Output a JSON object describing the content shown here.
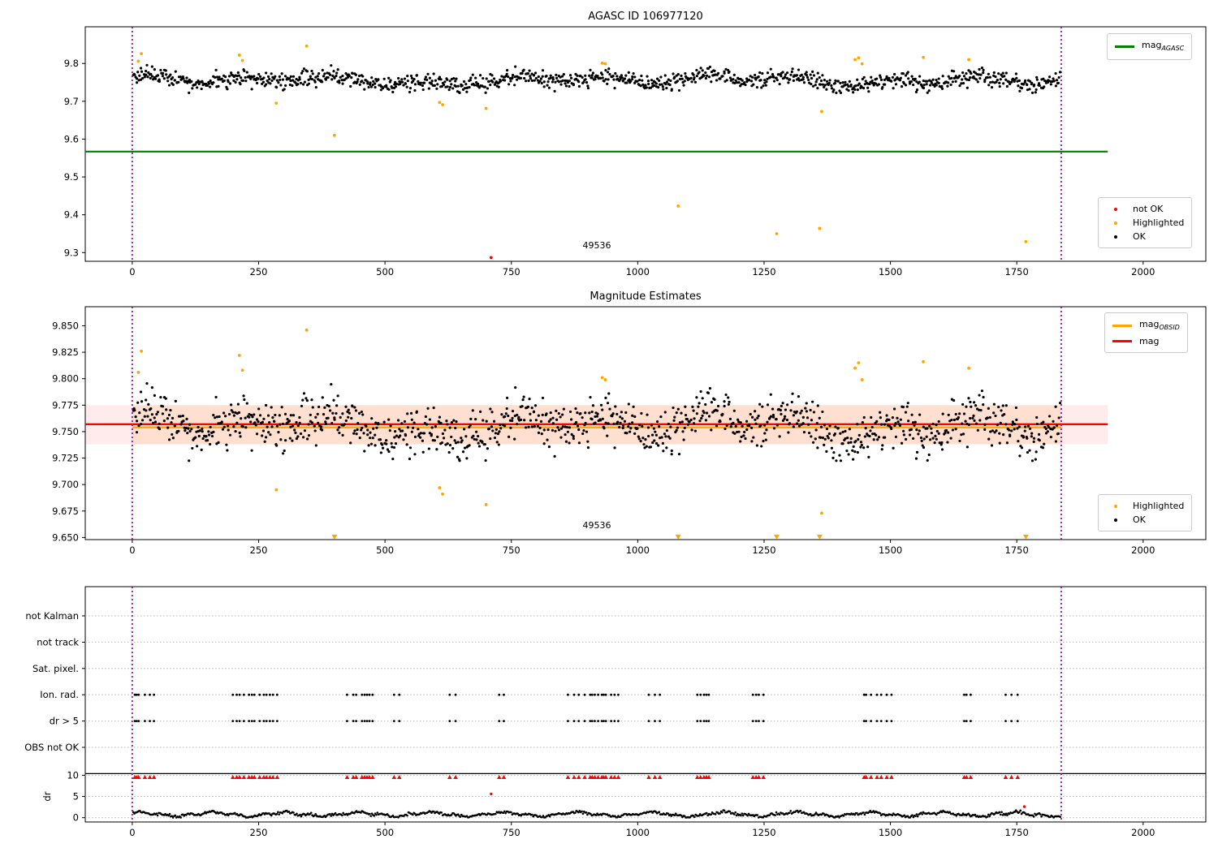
{
  "figure": {
    "bg": "#ffffff"
  },
  "colors": {
    "ok": "#000000",
    "highlighted": "#ffa500",
    "not_ok": "#ff0000",
    "mag_agasc_line": "#007f00",
    "mag_line": "#ff0000",
    "mag_obsid_line": "#ffa500",
    "obs_boundary": "#8b008b",
    "grid": "#b8b8b8",
    "spine": "#000000"
  },
  "chart_data": [
    {
      "id": "agasc-panel",
      "type": "scatter",
      "title": "AGASC ID 106977120",
      "xlim": [
        -93,
        2124
      ],
      "xticks": [
        0,
        250,
        500,
        750,
        1000,
        1250,
        1500,
        1750,
        2000
      ],
      "ylim": [
        9.277,
        9.897
      ],
      "yticks": [
        9.3,
        9.4,
        9.5,
        9.6,
        9.7,
        9.8
      ],
      "ytick_labels": [
        "9.3",
        "9.4",
        "9.5",
        "9.6",
        "9.7",
        "9.8"
      ],
      "obsid": {
        "id": "49536",
        "label_x": 919,
        "start": 0,
        "stop": 1838
      },
      "mag_agasc": 9.567,
      "hline_span": [
        -93,
        1930
      ],
      "scatter": {
        "n": 1150,
        "x_start": 2,
        "x_end": 1836,
        "mean": 9.7555,
        "noise": 0.0105
      },
      "highlighted": [
        [
          12,
          9.806
        ],
        [
          18,
          9.826
        ],
        [
          212,
          9.822
        ],
        [
          218,
          9.808
        ],
        [
          285,
          9.695
        ],
        [
          345,
          9.846
        ],
        [
          400,
          9.61
        ],
        [
          608,
          9.697
        ],
        [
          614,
          9.691
        ],
        [
          700,
          9.681
        ],
        [
          930,
          9.801
        ],
        [
          936,
          9.799
        ],
        [
          1080,
          9.423
        ],
        [
          1275,
          9.35
        ],
        [
          1360,
          9.364
        ],
        [
          1364,
          9.673
        ],
        [
          1430,
          9.81
        ],
        [
          1437,
          9.815
        ],
        [
          1444,
          9.799
        ],
        [
          1565,
          9.816
        ],
        [
          1655,
          9.81
        ],
        [
          1768,
          9.329
        ]
      ],
      "not_ok": [
        [
          710,
          9.287
        ]
      ],
      "legend_lines": [
        {
          "label": "mag",
          "sub": "AGASC",
          "color": "#007f00"
        }
      ],
      "legend_markers": [
        {
          "label": "not OK",
          "color": "#ff0000"
        },
        {
          "label": "Highlighted",
          "color": "#ffa500"
        },
        {
          "label": "OK",
          "color": "#000000"
        }
      ]
    },
    {
      "id": "mag-estimates-panel",
      "type": "scatter",
      "title": "Magnitude Estimates",
      "xlim": [
        -93,
        2124
      ],
      "xticks": [
        0,
        250,
        500,
        750,
        1000,
        1250,
        1500,
        1750,
        2000
      ],
      "ylim": [
        9.648,
        9.868
      ],
      "yticks": [
        9.65,
        9.675,
        9.7,
        9.725,
        9.75,
        9.775,
        9.8,
        9.825,
        9.85
      ],
      "ytick_labels": [
        "9.650",
        "9.675",
        "9.700",
        "9.725",
        "9.750",
        "9.775",
        "9.800",
        "9.825",
        "9.850"
      ],
      "obsid": {
        "id": "49536",
        "label_x": 919,
        "start": 0,
        "stop": 1838
      },
      "mag": 9.757,
      "mag_err_band": [
        9.738,
        9.775
      ],
      "mag_obsid": 9.754,
      "hline_span": [
        -93,
        1930
      ],
      "obsid_band_span": [
        0,
        1838
      ],
      "clip_min": 9.65,
      "scatter": {
        "n": 1150,
        "x_start": 2,
        "x_end": 1836,
        "mean": 9.7555,
        "noise": 0.0105
      },
      "highlighted": [
        [
          12,
          9.806
        ],
        [
          18,
          9.826
        ],
        [
          212,
          9.822
        ],
        [
          218,
          9.808
        ],
        [
          285,
          9.695
        ],
        [
          345,
          9.846
        ],
        [
          400,
          9.61
        ],
        [
          608,
          9.697
        ],
        [
          614,
          9.691
        ],
        [
          700,
          9.681
        ],
        [
          930,
          9.801
        ],
        [
          936,
          9.799
        ],
        [
          1080,
          9.423
        ],
        [
          1275,
          9.35
        ],
        [
          1360,
          9.364
        ],
        [
          1364,
          9.673
        ],
        [
          1430,
          9.81
        ],
        [
          1437,
          9.815
        ],
        [
          1444,
          9.799
        ],
        [
          1565,
          9.816
        ],
        [
          1655,
          9.81
        ],
        [
          1768,
          9.329
        ]
      ],
      "legend_lines": [
        {
          "label": "mag",
          "sub": "OBSID",
          "color": "#ffa500"
        },
        {
          "label": "mag",
          "sub": "",
          "color": "#ff0000"
        }
      ],
      "legend_markers": [
        {
          "label": "Highlighted",
          "color": "#ffa500"
        },
        {
          "label": "OK",
          "color": "#000000"
        }
      ]
    },
    {
      "id": "flags-dr-panel",
      "type": "flags-dr",
      "xlim": [
        -93,
        2124
      ],
      "xticks": [
        0,
        250,
        500,
        750,
        1000,
        1250,
        1500,
        1750,
        2000
      ],
      "flag_rows": [
        "not Kalman",
        "not track",
        "Sat. pixel.",
        "Ion. rad.",
        "dr > 5",
        "OBS not OK"
      ],
      "active_flag_rows": [
        "Ion. rad.",
        "dr > 5"
      ],
      "dr_axis_label": "dr",
      "dr_ticks": [
        0,
        5,
        10
      ],
      "obsid": {
        "start": 0,
        "stop": 1838
      },
      "flag_clusters": [
        [
          5,
          45
        ],
        [
          199,
          290
        ],
        [
          425,
          482
        ],
        [
          518,
          532
        ],
        [
          628,
          642
        ],
        [
          726,
          740
        ],
        [
          862,
          968
        ],
        [
          1022,
          1052
        ],
        [
          1118,
          1142
        ],
        [
          1228,
          1252
        ],
        [
          1448,
          1506
        ],
        [
          1646,
          1660
        ],
        [
          1728,
          1752
        ]
      ],
      "red_flag_dr_value": 9.5,
      "dr_red_outliers": [
        [
          710,
          5.6
        ],
        [
          1765,
          2.6
        ]
      ],
      "dr_trace": {
        "n": 840,
        "x_start": 2,
        "x_end": 1836,
        "base": 0.8,
        "max": 2.3
      }
    }
  ]
}
